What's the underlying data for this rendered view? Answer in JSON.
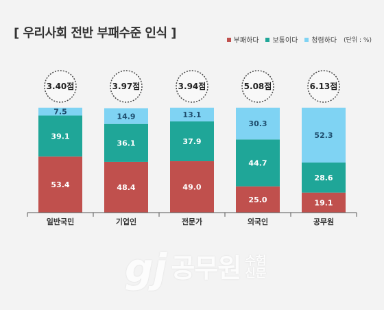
{
  "title": "[ 우리사회 전반 부패수준 인식 ]",
  "legend": {
    "unit": "(단위 : %)",
    "items": [
      {
        "label": "부패하다",
        "color": "#c0504d"
      },
      {
        "label": "보통이다",
        "color": "#1fa698"
      },
      {
        "label": "청렴하다",
        "color": "#7fd3f3"
      }
    ]
  },
  "chart_data": {
    "type": "bar",
    "stacked": true,
    "categories": [
      "일반국민",
      "기업인",
      "전문가",
      "외국인",
      "공무원"
    ],
    "scores": [
      "3.40점",
      "3.97점",
      "3.94점",
      "5.08점",
      "6.13점"
    ],
    "series": [
      {
        "name": "부패하다",
        "color": "#c0504d",
        "values": [
          53.4,
          48.4,
          49.0,
          25.0,
          19.1
        ],
        "labels": [
          "53.4",
          "48.4",
          "49.0",
          "25.0",
          "19.1"
        ]
      },
      {
        "name": "보통이다",
        "color": "#1fa698",
        "values": [
          39.1,
          36.1,
          37.9,
          44.7,
          28.6
        ],
        "labels": [
          "39.1",
          "36.1",
          "37.9",
          "44.7",
          "28.6"
        ]
      },
      {
        "name": "청렴하다",
        "color": "#7fd3f3",
        "values": [
          7.5,
          14.9,
          13.1,
          30.3,
          52.3
        ],
        "labels": [
          "7.5",
          "14.9",
          "13.1",
          "30.3",
          "52.3"
        ]
      }
    ],
    "ylim": [
      0,
      100
    ],
    "unit": "%"
  },
  "watermark": {
    "mark": "gj",
    "main": "공무원",
    "sub_top": "수험",
    "sub_bottom": "신문"
  }
}
